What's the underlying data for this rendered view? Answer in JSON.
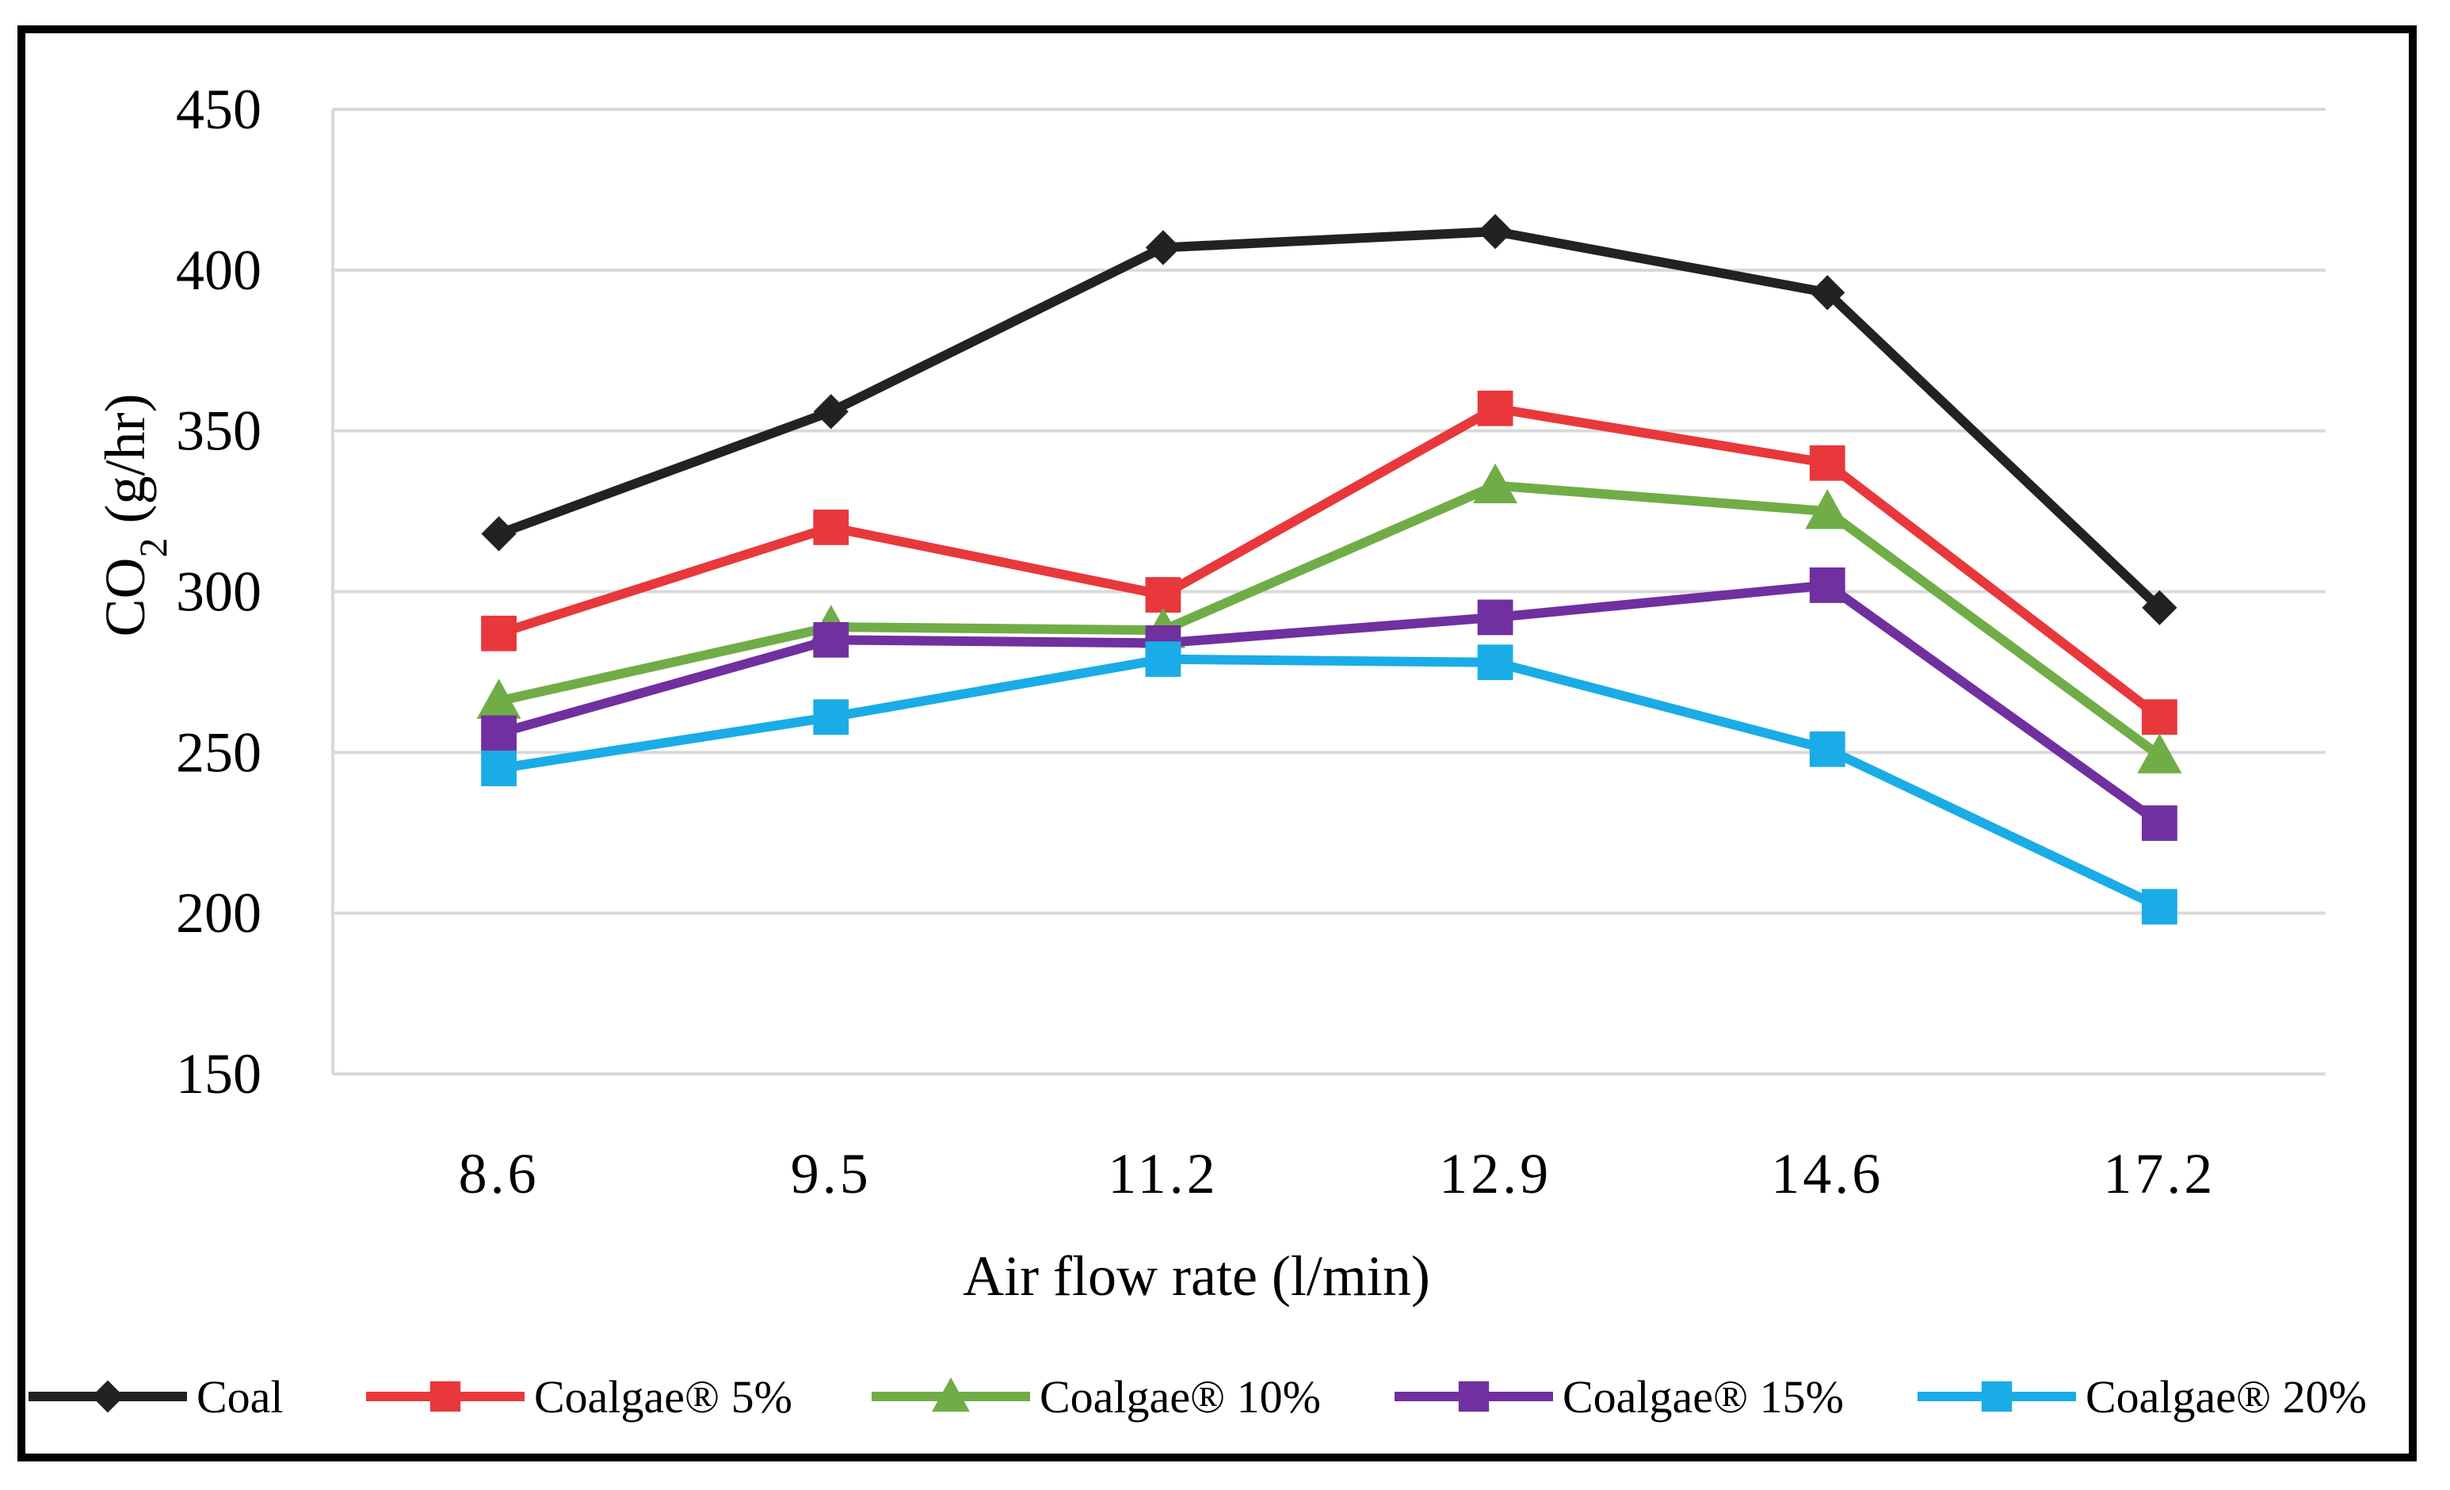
{
  "chart_data": {
    "type": "line",
    "title": "",
    "xlabel": "Air flow rate (l/min)",
    "ylabel_main": "CO",
    "ylabel_sub": "2",
    "ylabel_units": " (g/hr)",
    "categories": [
      "8.6",
      "9.5",
      "11.2",
      "12.9",
      "14.6",
      "17.2"
    ],
    "ylim": [
      150,
      450
    ],
    "yticks": [
      150,
      200,
      250,
      300,
      350,
      400,
      450
    ],
    "grid": true,
    "legend": "bottom",
    "series": [
      {
        "name": "Coal",
        "color": "#222222",
        "marker": "diamond",
        "values": [
          318,
          356,
          407,
          412,
          393,
          295
        ]
      },
      {
        "name": "Coalgae® 5%",
        "color": "#e8383b",
        "marker": "square",
        "values": [
          287,
          320,
          299,
          357,
          340,
          261
        ]
      },
      {
        "name": "Coalgae® 10%",
        "color": "#70ad47",
        "marker": "triangle",
        "values": [
          266,
          289,
          288,
          333,
          325,
          249
        ]
      },
      {
        "name": "Coalgae® 15%",
        "color": "#7030a0",
        "marker": "square",
        "values": [
          256,
          285,
          284,
          292,
          302,
          228
        ]
      },
      {
        "name": "Coalgae® 20%",
        "color": "#1aace6",
        "marker": "square",
        "values": [
          245,
          261,
          279,
          278,
          251,
          202
        ]
      }
    ]
  }
}
